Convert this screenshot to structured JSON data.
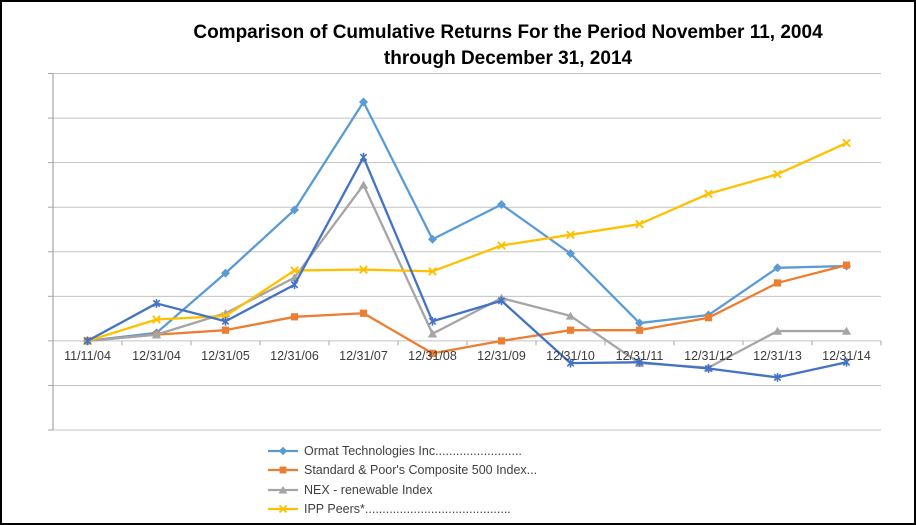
{
  "chart_data": {
    "type": "line",
    "title": "Comparison of Cumulative Returns For the Period November 11, 2004 through December 31, 2014",
    "title_lines": [
      "Comparison of Cumulative Returns For the Period November 11, 2004",
      "through December 31, 2014"
    ],
    "categories": [
      "11/11/04",
      "12/31/04",
      "12/31/05",
      "12/31/06",
      "12/31/07",
      "12/31/08",
      "12/31/09",
      "12/31/10",
      "12/31/11",
      "12/31/12",
      "12/31/13",
      "12/31/14"
    ],
    "series": [
      {
        "name": "Ormat Technologies Inc.........................",
        "marker": "diamond",
        "color": "#5B9BD5",
        "in_legend": true,
        "values": [
          0,
          9,
          76,
          147,
          268,
          114,
          153,
          98,
          20,
          29,
          82,
          84
        ]
      },
      {
        "name": "Standard & Poor's Composite 500 Index...",
        "marker": "square",
        "color": "#ED7D31",
        "in_legend": true,
        "values": [
          0,
          7,
          12,
          27,
          31,
          -14,
          0,
          12,
          12,
          26,
          65,
          85
        ]
      },
      {
        "name": "NEX - renewable Index",
        "marker": "triangle",
        "color": "#A5A5A5",
        "in_legend": true,
        "values": [
          0,
          7,
          31,
          71,
          175,
          8,
          48,
          28,
          -25,
          -30,
          11,
          11
        ]
      },
      {
        "name": "IPP Peers*..........................................",
        "marker": "x",
        "color": "#FFC000",
        "in_legend": true,
        "values": [
          0,
          24,
          28,
          79,
          80,
          78,
          107,
          119,
          131,
          165,
          187,
          222
        ]
      },
      {
        "name": "",
        "marker": "asterisk",
        "color": "#4472C4",
        "in_legend": false,
        "values": [
          0,
          42,
          22,
          63,
          206,
          22,
          45,
          -25,
          -24,
          -31,
          -41,
          -24
        ]
      }
    ],
    "y_axis": {
      "min": -100,
      "max": 300,
      "step": 50,
      "ticks": [
        300,
        250,
        200,
        150,
        100,
        50,
        0,
        -50,
        -100
      ]
    },
    "grid": true,
    "legend_position": "bottom-center",
    "colors": {
      "grid": "#C3C3C3",
      "axis": "#A6A6A6",
      "tick_text": "#3B3B3B",
      "title_text": "#000000",
      "background": "#FFFFFF",
      "border": "#000000"
    }
  }
}
